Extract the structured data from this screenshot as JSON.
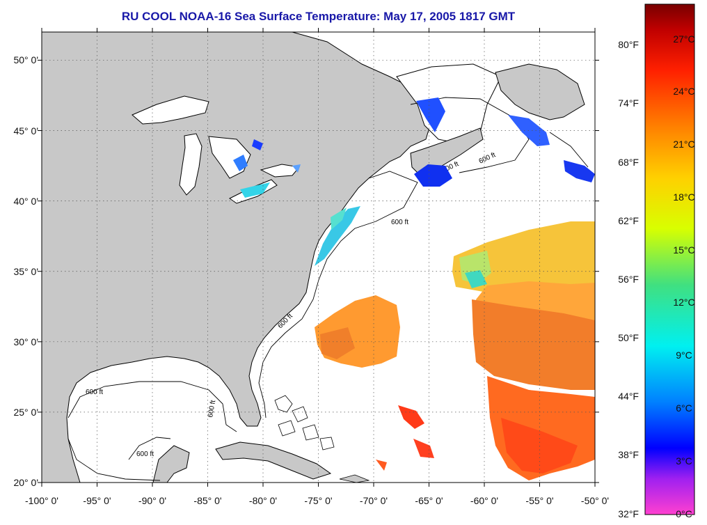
{
  "title": "RU COOL  NOAA-16  Sea Surface Temperature:  May 17, 2005 1817 GMT",
  "map": {
    "lon_range": [
      -100,
      -50
    ],
    "lat_range": [
      20,
      52
    ],
    "lat_ticks": [
      {
        "value": 50,
        "label": "50° 0'"
      },
      {
        "value": 45,
        "label": "45° 0'"
      },
      {
        "value": 40,
        "label": "40° 0'"
      },
      {
        "value": 35,
        "label": "35° 0'"
      },
      {
        "value": 30,
        "label": "30° 0'"
      },
      {
        "value": 25,
        "label": "25° 0'"
      },
      {
        "value": 20,
        "label": "20° 0'"
      }
    ],
    "lon_ticks": [
      {
        "value": -100,
        "label": "-100° 0'"
      },
      {
        "value": -95,
        "label": "-95° 0'"
      },
      {
        "value": -90,
        "label": "-90° 0'"
      },
      {
        "value": -85,
        "label": "-85° 0'"
      },
      {
        "value": -80,
        "label": "-80° 0'"
      },
      {
        "value": -75,
        "label": "-75° 0'"
      },
      {
        "value": -70,
        "label": "-70° 0'"
      },
      {
        "value": -65,
        "label": "-65° 0'"
      },
      {
        "value": -60,
        "label": "-60° 0'"
      },
      {
        "value": -55,
        "label": "-55° 0'"
      },
      {
        "value": -50,
        "label": "-50° 0'"
      }
    ],
    "contour_label": "600 ft",
    "land_color": "#c8c8c8",
    "ocean_color": "#ffffff"
  },
  "colorbar": {
    "fahrenheit_labels": [
      "80°F",
      "74°F",
      "68°F",
      "62°F",
      "56°F",
      "50°F",
      "44°F",
      "38°F",
      "32°F"
    ],
    "celsius_labels": [
      "27°C",
      "24°C",
      "21°C",
      "18°C",
      "15°C",
      "12°C",
      "9°C",
      "6°C",
      "3°C",
      "0°C"
    ],
    "colors": [
      "#ff40c8",
      "#a020f0",
      "#0000ff",
      "#0080ff",
      "#00e8e8",
      "#40e080",
      "#d8ff00",
      "#ffd000",
      "#ff8000",
      "#ff2000",
      "#c00000",
      "#780000"
    ]
  }
}
